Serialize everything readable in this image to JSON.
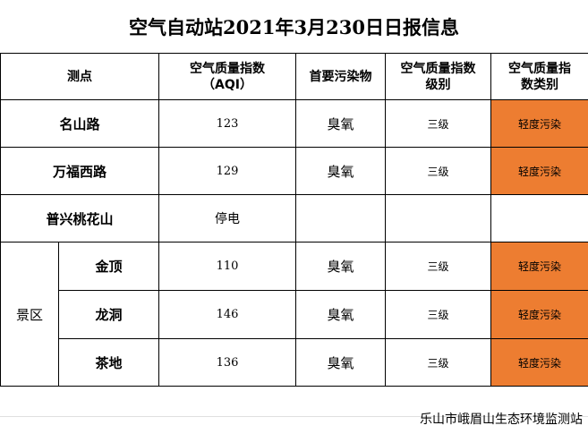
{
  "title": "空气自动站2021年3月230日日报信息",
  "headers": {
    "site": "测点",
    "aqi_line1": "空气质量指数",
    "aqi_line2": "（AQI）",
    "primary": "首要污染物",
    "level_line1": "空气质量指数",
    "level_line2": "级别",
    "category_line1": "空气质量指",
    "category_line2": "数类别"
  },
  "rows": [
    {
      "name": "名山路",
      "aqi": "123",
      "primary": "臭氧",
      "level": "三级",
      "category": "轻度污染"
    },
    {
      "name": "万福西路",
      "aqi": "129",
      "primary": "臭氧",
      "level": "三级",
      "category": "轻度污染"
    },
    {
      "name": "普兴桃花山",
      "aqi": "停电",
      "primary": "",
      "level": "",
      "category": ""
    }
  ],
  "zone": {
    "label": "景区",
    "rows": [
      {
        "name": "金顶",
        "aqi": "110",
        "primary": "臭氧",
        "level": "三级",
        "category": "轻度污染"
      },
      {
        "name": "龙洞",
        "aqi": "146",
        "primary": "臭氧",
        "level": "三级",
        "category": "轻度污染"
      },
      {
        "name": "茶地",
        "aqi": "136",
        "primary": "臭氧",
        "level": "三级",
        "category": "轻度污染"
      }
    ]
  },
  "footer": "乐山市峨眉山生态环境监测站",
  "colors": {
    "category_fill": "#ed7d31"
  }
}
